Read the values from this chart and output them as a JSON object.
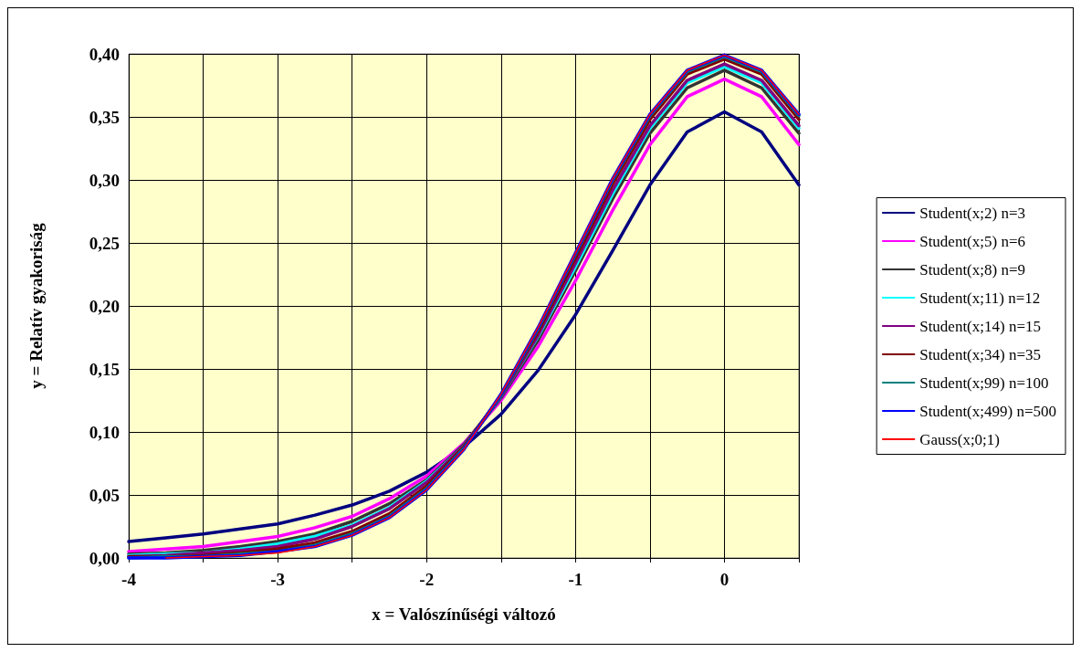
{
  "chart_data": {
    "type": "line",
    "xlabel": "x = Valószínűségi változó",
    "ylabel": "y = Relatív gyakoriság",
    "x": [
      -4,
      -3.75,
      -3.5,
      -3.25,
      -3,
      -2.75,
      -2.5,
      -2.25,
      -2,
      -1.75,
      -1.5,
      -1.25,
      -1,
      -0.75,
      -0.5,
      -0.25,
      0,
      0.25,
      0.5
    ],
    "xlim": [
      -4,
      0.5
    ],
    "xticks": [
      {
        "value": -4,
        "label": "-4"
      },
      {
        "value": -3.5,
        "label": null
      },
      {
        "value": -3,
        "label": "-3"
      },
      {
        "value": -2.5,
        "label": null
      },
      {
        "value": -2,
        "label": "-2"
      },
      {
        "value": -1.5,
        "label": null
      },
      {
        "value": -1,
        "label": "-1"
      },
      {
        "value": -0.5,
        "label": null
      },
      {
        "value": 0,
        "label": "0"
      },
      {
        "value": 0.5,
        "label": null
      }
    ],
    "ylim": [
      0,
      0.4
    ],
    "yticks": [
      {
        "value": 0,
        "label": "0,00"
      },
      {
        "value": 0.05,
        "label": "0,05"
      },
      {
        "value": 0.1,
        "label": "0,10"
      },
      {
        "value": 0.15,
        "label": "0,15"
      },
      {
        "value": 0.2,
        "label": "0,20"
      },
      {
        "value": 0.25,
        "label": "0,25"
      },
      {
        "value": 0.3,
        "label": "0,30"
      },
      {
        "value": 0.35,
        "label": "0,35"
      },
      {
        "value": 0.4,
        "label": "0,40"
      }
    ],
    "grid": true,
    "legend": "right",
    "marker": "none",
    "line_style": "solid",
    "series": [
      {
        "name": "Student(x;2) n=3",
        "color": "#000080",
        "values": [
          0.013,
          0.016,
          0.019,
          0.023,
          0.027,
          0.034,
          0.042,
          0.053,
          0.068,
          0.088,
          0.114,
          0.149,
          0.193,
          0.244,
          0.296,
          0.338,
          0.354,
          0.338,
          0.296
        ]
      },
      {
        "name": "Student(x;5) n=6",
        "color": "#ff00ff",
        "values": [
          0.005,
          0.007,
          0.009,
          0.013,
          0.017,
          0.024,
          0.033,
          0.047,
          0.065,
          0.091,
          0.125,
          0.168,
          0.22,
          0.276,
          0.328,
          0.366,
          0.38,
          0.366,
          0.328
        ]
      },
      {
        "name": "Student(x;8) n=9",
        "color": "#333333",
        "values": [
          0.003,
          0.004,
          0.006,
          0.009,
          0.013,
          0.019,
          0.029,
          0.043,
          0.062,
          0.09,
          0.127,
          0.173,
          0.228,
          0.285,
          0.337,
          0.373,
          0.387,
          0.373,
          0.337
        ]
      },
      {
        "name": "Student(x;11) n=12",
        "color": "#00ffff",
        "values": [
          0.002,
          0.003,
          0.004,
          0.007,
          0.011,
          0.017,
          0.026,
          0.04,
          0.061,
          0.089,
          0.128,
          0.176,
          0.231,
          0.289,
          0.341,
          0.377,
          0.39,
          0.377,
          0.341
        ]
      },
      {
        "name": "Student(x;14) n=15",
        "color": "#800080",
        "values": [
          0.001,
          0.002,
          0.004,
          0.006,
          0.009,
          0.015,
          0.025,
          0.039,
          0.06,
          0.089,
          0.128,
          0.177,
          0.234,
          0.292,
          0.343,
          0.379,
          0.392,
          0.379,
          0.343
        ]
      },
      {
        "name": "Student(x;34) n=35",
        "color": "#800000",
        "values": [
          0.001,
          0.001,
          0.002,
          0.004,
          0.007,
          0.012,
          0.021,
          0.035,
          0.057,
          0.088,
          0.129,
          0.18,
          0.238,
          0.297,
          0.348,
          0.384,
          0.396,
          0.384,
          0.348
        ]
      },
      {
        "name": "Student(x;99) n=100",
        "color": "#008080",
        "values": [
          0,
          0.001,
          0.001,
          0.003,
          0.005,
          0.01,
          0.019,
          0.033,
          0.055,
          0.087,
          0.129,
          0.182,
          0.241,
          0.3,
          0.351,
          0.386,
          0.398,
          0.386,
          0.351
        ]
      },
      {
        "name": "Student(x;499) n=500",
        "color": "#0000ff",
        "values": [
          0,
          0,
          0.001,
          0.002,
          0.005,
          0.009,
          0.018,
          0.032,
          0.054,
          0.086,
          0.13,
          0.183,
          0.242,
          0.301,
          0.352,
          0.387,
          0.399,
          0.387,
          0.352
        ]
      },
      {
        "name": "Gauss(x;0;1)",
        "color": "#ff0000",
        "values": [
          null,
          0,
          0.001,
          0.002,
          0.004,
          0.009,
          0.018,
          0.032,
          0.054,
          0.086,
          0.13,
          0.183,
          0.242,
          0.301,
          0.352,
          0.387,
          0.399,
          0.387,
          0.352
        ]
      }
    ]
  }
}
